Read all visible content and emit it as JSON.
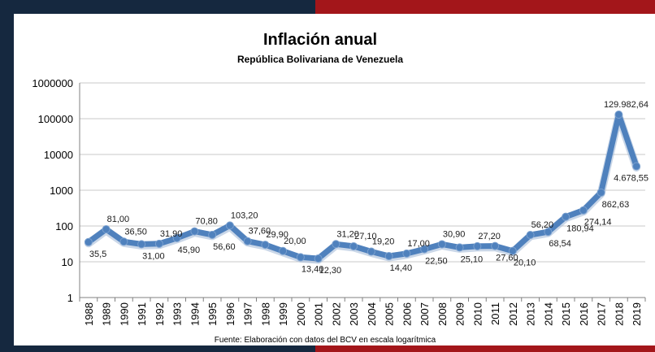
{
  "colors": {
    "frame_dark": "#15283f",
    "frame_red": "#a3161a",
    "series": "#4f81bd",
    "grid": "#c8c8c8",
    "axis": "#808080"
  },
  "chart_data": {
    "type": "line",
    "title": "Inflación anual",
    "subtitle": "República Bolivariana de Venezuela",
    "source_note": "Fuente: Elaboración con datos del BCV en escala logarítmica",
    "y_scale": "log10",
    "ylim": [
      1,
      1000000
    ],
    "y_ticks": [
      "1",
      "10",
      "100",
      "1000",
      "10000",
      "100000",
      "1000000"
    ],
    "categories": [
      "1988",
      "1989",
      "1990",
      "1991",
      "1992",
      "1993",
      "1994",
      "1995",
      "1996",
      "1997",
      "1998",
      "1999",
      "2000",
      "2001",
      "2002",
      "2003",
      "2004",
      "2005",
      "2006",
      "2007",
      "2008",
      "2009",
      "2010",
      "2011",
      "2012",
      "2013",
      "2014",
      "2015",
      "2016",
      "2017",
      "2018",
      "2019"
    ],
    "values": [
      35.5,
      81.0,
      36.5,
      31.0,
      31.9,
      45.9,
      70.8,
      56.6,
      103.2,
      37.6,
      29.9,
      20.0,
      13.4,
      12.3,
      31.2,
      27.1,
      19.2,
      14.4,
      17.0,
      22.5,
      30.9,
      25.1,
      27.2,
      27.6,
      20.1,
      56.2,
      68.54,
      180.94,
      274.14,
      862.63,
      129982.64,
      4678.55
    ],
    "data_labels": [
      "35,5",
      "81,00",
      "36,50",
      "31,00",
      "31,90",
      "45,90",
      "70,80",
      "56,60",
      "103,20",
      "37,60",
      "29,90",
      "20,00",
      "13,40",
      "12,30",
      "31,20",
      "27,10",
      "19,20",
      "14,40",
      "17,00",
      "22,50",
      "30,90",
      "25,10",
      "27,20",
      "27,60",
      "20,10",
      "56,20",
      "68,54",
      "180,94",
      "274,14",
      "862,63",
      "129.982,64",
      "4.678,55"
    ],
    "label_position": [
      "below",
      "above",
      "above",
      "below",
      "above",
      "below",
      "above",
      "below",
      "above",
      "above",
      "above",
      "above",
      "below",
      "below",
      "above",
      "above",
      "above",
      "below",
      "above",
      "below",
      "above",
      "below",
      "above",
      "below",
      "below",
      "above",
      "below",
      "below",
      "below",
      "below",
      "above",
      "below"
    ],
    "grid": true,
    "legend": "none"
  }
}
